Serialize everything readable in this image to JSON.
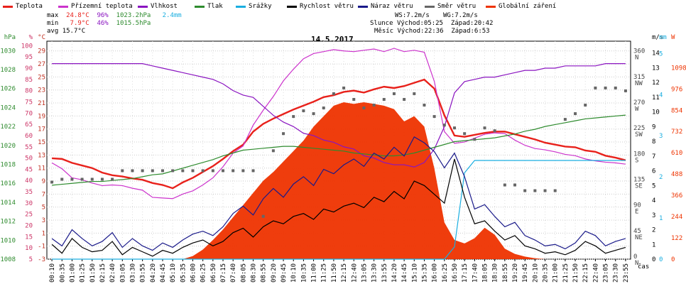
{
  "legend": [
    {
      "label": "Teplota",
      "color": "#e8211b"
    },
    {
      "label": "Přízemní teplota",
      "color": "#cc33cc"
    },
    {
      "label": "Vlhkost",
      "color": "#8a14c0"
    },
    {
      "label": "Tlak",
      "color": "#2e8b2e"
    },
    {
      "label": "Srážky",
      "color": "#1aaee0"
    },
    {
      "label": "Rychlost větru",
      "color": "#000000"
    },
    {
      "label": "Náraz větru",
      "color": "#1a1a8a"
    },
    {
      "label": "Směr větru",
      "color": "#666666"
    },
    {
      "label": "Globální záření",
      "color": "#ee3300"
    }
  ],
  "stats": {
    "max_label": "max",
    "max_temp": "24.8°C",
    "max_hum": "96%",
    "max_press": "1023.2hPa",
    "rain": "2.4mm",
    "min_label": "min",
    "min_temp": "7.9°C",
    "min_hum": "46%",
    "min_press": "1015.5hPa",
    "avg_label": "avg",
    "avg_temp": "15.7°C"
  },
  "wind_info": {
    "ws": "WS:7.2m/s",
    "wg": "WG:7.2m/s",
    "sun_label": "Slunce",
    "sunrise": "Východ:05:25",
    "sunset": "Západ:20:42",
    "moon_label": "Měsíc",
    "moonrise": "Východ:22:36",
    "moonset": "Západ:6:53"
  },
  "chart_data": {
    "type": "line",
    "title": "14.5.2017",
    "xlabel": "čas",
    "x": [
      "00:10",
      "00:35",
      "01:00",
      "01:25",
      "01:50",
      "02:15",
      "02:40",
      "03:05",
      "03:30",
      "03:55",
      "04:20",
      "04:45",
      "05:10",
      "05:35",
      "06:00",
      "06:25",
      "06:50",
      "07:15",
      "07:40",
      "08:05",
      "08:30",
      "08:55",
      "09:20",
      "09:45",
      "10:10",
      "10:35",
      "11:00",
      "11:25",
      "11:50",
      "12:15",
      "12:40",
      "13:05",
      "13:30",
      "13:55",
      "14:20",
      "14:45",
      "15:10",
      "15:35",
      "16:00",
      "16:25",
      "16:50",
      "17:15",
      "17:40",
      "18:05",
      "18:30",
      "18:55",
      "19:20",
      "19:45",
      "20:10",
      "20:35",
      "21:00",
      "21:25",
      "21:50",
      "22:15",
      "22:40",
      "23:05",
      "23:30",
      "23:55"
    ],
    "axes": {
      "pressure_hPa": {
        "label": "hPa",
        "ticks": [
          "1008",
          "1010",
          "1012",
          "1014",
          "1016",
          "1018",
          "1020",
          "1022",
          "1024",
          "1026",
          "1028",
          "1030"
        ]
      },
      "humidity_pct": {
        "label": "%",
        "ticks": [
          "5",
          "10",
          "15",
          "20",
          "25",
          "30",
          "35",
          "40",
          "45",
          "50",
          "55",
          "60",
          "65",
          "70",
          "75",
          "80",
          "85",
          "90",
          "95",
          "100"
        ]
      },
      "temperature_C": {
        "label": "°C",
        "ticks": [
          "-3",
          "-1",
          "1",
          "3",
          "5",
          "7",
          "9",
          "11",
          "13",
          "15",
          "17",
          "19",
          "21",
          "23",
          "25",
          "27",
          "29"
        ]
      },
      "wind_dir_deg": {
        "label": "",
        "ticks": [
          "0 N",
          "45 NE",
          "90 E",
          "135 SE",
          "180 S",
          "225 SW",
          "270 W",
          "315 NW",
          "360 N"
        ]
      },
      "wind_speed_ms": {
        "label": "m/s",
        "ticks": [
          "0",
          "1",
          "2",
          "3",
          "4",
          "5",
          "6",
          "7",
          "8",
          "9",
          "10",
          "11",
          "12",
          "13",
          "14"
        ]
      },
      "rain_mm": {
        "label": "mm",
        "ticks": [
          "0",
          "1",
          "2",
          "3",
          "4",
          "5"
        ]
      },
      "radiation_W": {
        "label": "W",
        "ticks": [
          "0",
          "122",
          "244",
          "366",
          "488",
          "610",
          "732",
          "854",
          "976",
          "1098"
        ]
      }
    },
    "series": [
      {
        "name": "Teplota",
        "axis": "temperature_C",
        "color": "#e8211b",
        "values": [
          12.5,
          12.4,
          11.8,
          11.4,
          11.0,
          10.3,
          9.9,
          9.7,
          9.4,
          9.2,
          8.7,
          8.4,
          7.9,
          8.8,
          9.5,
          10.4,
          11.3,
          12.4,
          13.6,
          14.6,
          16.6,
          17.8,
          18.6,
          19.3,
          20.0,
          20.6,
          21.2,
          21.9,
          22.2,
          22.7,
          22.9,
          22.6,
          23.1,
          23.5,
          23.3,
          23.6,
          24.1,
          24.6,
          23.2,
          19.1,
          16.0,
          15.8,
          16.1,
          16.4,
          16.6,
          16.6,
          16.2,
          15.8,
          15.4,
          14.9,
          14.6,
          14.3,
          14.2,
          13.7,
          13.5,
          12.9,
          12.6,
          12.2
        ]
      },
      {
        "name": "Přízemní teplota",
        "axis": "temperature_C",
        "color": "#cc33cc",
        "values": [
          11.8,
          10.9,
          9.5,
          9.2,
          8.7,
          8.3,
          8.4,
          8.3,
          7.9,
          7.6,
          6.5,
          6.4,
          6.3,
          7.0,
          7.5,
          8.4,
          9.5,
          11.2,
          13.3,
          14.4,
          17.6,
          19.9,
          22.0,
          24.4,
          26.2,
          27.8,
          28.6,
          28.9,
          29.2,
          29.0,
          28.9,
          29.1,
          29.3,
          28.9,
          29.4,
          28.9,
          29.1,
          28.8,
          24.3,
          16.6,
          14.8,
          15.0,
          15.6,
          16.2,
          16.4,
          16.3,
          15.3,
          14.5,
          14.0,
          13.8,
          13.5,
          13.1,
          12.9,
          12.4,
          12.1,
          11.9,
          11.8,
          11.6
        ]
      },
      {
        "name": "Vlhkost",
        "axis": "humidity_pct",
        "color": "#8a14c0",
        "values": [
          92,
          92,
          92,
          92,
          92,
          92,
          92,
          92,
          92,
          92,
          91,
          90,
          89,
          88,
          87,
          86,
          85,
          83,
          80,
          78,
          77,
          73,
          69,
          66,
          64,
          61,
          60,
          58,
          57,
          55,
          54,
          51,
          50,
          48,
          47,
          47,
          46,
          48,
          54,
          64,
          79,
          84,
          85,
          86,
          86,
          87,
          88,
          89,
          89,
          90,
          90,
          91,
          91,
          91,
          91,
          92,
          92,
          92
        ]
      },
      {
        "name": "Tlak",
        "axis": "pressure_hPa",
        "color": "#2e8b2e",
        "values": [
          1015.8,
          1015.9,
          1016.0,
          1016.1,
          1016.2,
          1016.2,
          1016.3,
          1016.4,
          1016.5,
          1016.7,
          1016.9,
          1017.0,
          1017.3,
          1017.6,
          1017.9,
          1018.2,
          1018.5,
          1018.9,
          1019.2,
          1019.5,
          1019.6,
          1019.7,
          1019.8,
          1019.9,
          1019.9,
          1019.8,
          1019.7,
          1019.6,
          1019.5,
          1019.4,
          1019.2,
          1019.1,
          1019.0,
          1018.9,
          1018.9,
          1019.0,
          1019.2,
          1019.5,
          1019.8,
          1020.1,
          1020.4,
          1020.5,
          1020.6,
          1020.7,
          1020.8,
          1021.0,
          1021.2,
          1021.5,
          1021.7,
          1022.0,
          1022.2,
          1022.4,
          1022.6,
          1022.8,
          1022.9,
          1023.0,
          1023.1,
          1023.2
        ]
      },
      {
        "name": "Srážky",
        "axis": "rain_mm",
        "color": "#1aaee0",
        "values": [
          0,
          0,
          0,
          0,
          0,
          0,
          0,
          0,
          0,
          0,
          0,
          0,
          0,
          0,
          0,
          0,
          0,
          0,
          0,
          0,
          0,
          0,
          0,
          0,
          0,
          0,
          0,
          0,
          0,
          0,
          0,
          0,
          0,
          0,
          0,
          0,
          0,
          0,
          0,
          0,
          0.3,
          2.1,
          2.4,
          2.4,
          2.4,
          2.4,
          2.4,
          2.4,
          2.4,
          2.4,
          2.4,
          2.4,
          2.4,
          2.4,
          2.4,
          2.4,
          2.4,
          2.4
        ]
      },
      {
        "name": "Rychlost větru",
        "axis": "wind_speed_ms",
        "color": "#000000",
        "values": [
          1.0,
          0.4,
          1.4,
          0.8,
          0.5,
          0.6,
          1.2,
          0.3,
          0.8,
          0.5,
          0.2,
          0.6,
          0.4,
          0.8,
          1.1,
          1.3,
          0.9,
          1.2,
          1.8,
          2.1,
          1.5,
          2.2,
          2.6,
          2.4,
          2.9,
          3.1,
          2.7,
          3.4,
          3.2,
          3.6,
          3.8,
          3.5,
          4.2,
          3.9,
          4.6,
          4.1,
          5.3,
          5.0,
          4.4,
          3.8,
          6.8,
          4.2,
          2.4,
          2.6,
          1.9,
          1.3,
          1.6,
          0.9,
          0.7,
          0.4,
          0.5,
          0.3,
          0.6,
          1.2,
          0.9,
          0.4,
          0.6,
          0.8
        ]
      },
      {
        "name": "Náraz větru",
        "axis": "wind_speed_ms",
        "color": "#1a1a8a",
        "values": [
          1.4,
          0.9,
          2.0,
          1.4,
          0.9,
          1.2,
          1.8,
          0.8,
          1.4,
          0.9,
          0.6,
          1.1,
          0.8,
          1.3,
          1.7,
          1.9,
          1.6,
          2.2,
          3.1,
          3.6,
          3.0,
          4.1,
          4.8,
          4.2,
          5.1,
          5.6,
          5.0,
          6.1,
          5.8,
          6.4,
          6.8,
          6.3,
          7.2,
          6.8,
          7.6,
          7.0,
          8.3,
          7.9,
          7.3,
          6.2,
          7.2,
          5.6,
          3.4,
          3.7,
          2.9,
          2.2,
          2.5,
          1.6,
          1.3,
          0.9,
          1.0,
          0.7,
          1.1,
          1.9,
          1.6,
          0.9,
          1.2,
          1.4
        ]
      },
      {
        "name": "Směr větru",
        "axis": "wind_dir_deg",
        "color": "#666666",
        "values": [
          135,
          140,
          140,
          140,
          140,
          140,
          140,
          155,
          155,
          155,
          155,
          155,
          155,
          155,
          155,
          155,
          155,
          155,
          155,
          155,
          155,
          75,
          190,
          220,
          250,
          260,
          255,
          265,
          290,
          300,
          280,
          265,
          270,
          280,
          290,
          280,
          290,
          270,
          250,
          235,
          230,
          220,
          210,
          230,
          225,
          130,
          130,
          120,
          120,
          120,
          120,
          245,
          255,
          270,
          300,
          300,
          300,
          295
        ]
      },
      {
        "name": "Globální záření",
        "axis": "radiation_W",
        "color": "#ee3300",
        "values": [
          0,
          0,
          0,
          0,
          0,
          0,
          0,
          0,
          0,
          0,
          0,
          0,
          0,
          0,
          18,
          55,
          110,
          170,
          240,
          310,
          380,
          450,
          500,
          560,
          620,
          680,
          760,
          820,
          880,
          900,
          890,
          900,
          890,
          880,
          860,
          790,
          820,
          760,
          520,
          210,
          110,
          90,
          120,
          180,
          140,
          60,
          30,
          15,
          5,
          0,
          0,
          0,
          0,
          0,
          0,
          0,
          0,
          0
        ]
      }
    ],
    "grid": true
  }
}
